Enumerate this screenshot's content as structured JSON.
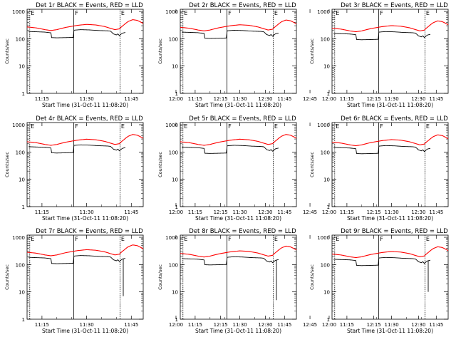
{
  "chart_data": {
    "type": "line",
    "ylabel": "Counts/sec",
    "xlabel": "Start Time (31-Oct-11 11:08:20)",
    "x_ticks": [
      "11:15",
      "11:30",
      "11:45",
      "12:00",
      "12:15",
      "12:30",
      "12:45"
    ],
    "y_ticks": [
      "1",
      "10",
      "100",
      "1000"
    ],
    "x_range_minutes_after_11_00": [
      10,
      49
    ],
    "ylim": [
      1,
      1200
    ],
    "log_y": true,
    "markers": [
      {
        "label": "E",
        "minute": 10.9
      },
      {
        "label": "F",
        "minute": 25.7
      },
      {
        "label": "E",
        "minute": 41.2
      }
    ],
    "series_colors": {
      "events": "#000000",
      "lld": "#ff0000"
    },
    "panels": [
      {
        "title": "Det 1r BLACK = Events, RED = LLD",
        "events_scale": 1.0,
        "lld_scale": 1.0,
        "drop_to": null
      },
      {
        "title": "Det 2r BLACK = Events, RED = LLD",
        "events_scale": 0.95,
        "lld_scale": 0.97,
        "drop_to": null
      },
      {
        "title": "Det 3r BLACK = Events, RED = LLD",
        "events_scale": 0.85,
        "lld_scale": 0.9,
        "drop_to": null
      },
      {
        "title": "Det 4r BLACK = Events, RED = LLD",
        "events_scale": 0.85,
        "lld_scale": 0.88,
        "drop_to": null
      },
      {
        "title": "Det 5r BLACK = Events, RED = LLD",
        "events_scale": 0.82,
        "lld_scale": 0.88,
        "drop_to": null
      },
      {
        "title": "Det 6r BLACK = Events, RED = LLD",
        "events_scale": 0.8,
        "lld_scale": 0.85,
        "drop_to": null
      },
      {
        "title": "Det 7r BLACK = Events, RED = LLD",
        "events_scale": 1.0,
        "lld_scale": 1.05,
        "drop_to": 7
      },
      {
        "title": "Det 8r BLACK = Events, RED = LLD",
        "events_scale": 0.9,
        "lld_scale": 0.95,
        "drop_to": 5
      },
      {
        "title": "Det 9r BLACK = Events, RED = LLD",
        "events_scale": 0.85,
        "lld_scale": 0.9,
        "drop_to": 10
      }
    ]
  }
}
